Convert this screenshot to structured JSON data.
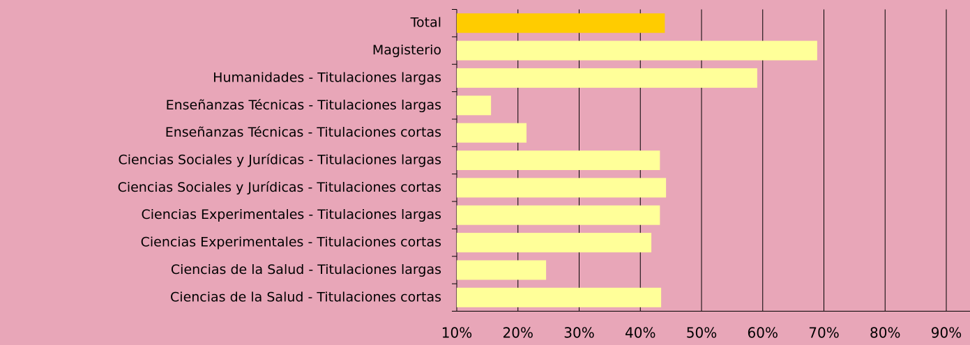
{
  "chart_data": {
    "type": "barh",
    "categories": [
      "Total",
      "Magisterio",
      "Humanidades - Titulaciones largas",
      "Enseñanzas Técnicas - Titulaciones largas",
      "Enseñanzas Técnicas - Titulaciones cortas",
      "Ciencias Sociales y Jurídicas - Titulaciones largas",
      "Ciencias Sociales y Jurídicas - Titulaciones cortas",
      "Ciencias Experimentales - Titulaciones largas",
      "Ciencias Experimentales - Titulaciones cortas",
      "Ciencias de la Salud - Titulaciones largas",
      "Ciencias de la Salud - Titulaciones cortas"
    ],
    "values": [
      44,
      68.9,
      59.1,
      15.6,
      21.4,
      43.2,
      44.2,
      43.2,
      41.8,
      24.6,
      43.4
    ],
    "colors": [
      "#ffcc00",
      "#ffff99",
      "#ffff99",
      "#ffff99",
      "#ffff99",
      "#ffff99",
      "#ffff99",
      "#ffff99",
      "#ffff99",
      "#ffff99",
      "#ffff99"
    ],
    "xlim": [
      10,
      90
    ],
    "xticks": [
      {
        "value": 10,
        "label": "10%"
      },
      {
        "value": 20,
        "label": "20%"
      },
      {
        "value": 30,
        "label": "30%"
      },
      {
        "value": 40,
        "label": "40%"
      },
      {
        "value": 50,
        "label": "50%"
      },
      {
        "value": 60,
        "label": "60%"
      },
      {
        "value": 70,
        "label": "70%"
      },
      {
        "value": 80,
        "label": "80%"
      },
      {
        "value": 90,
        "label": "90%"
      }
    ],
    "grid": true
  }
}
